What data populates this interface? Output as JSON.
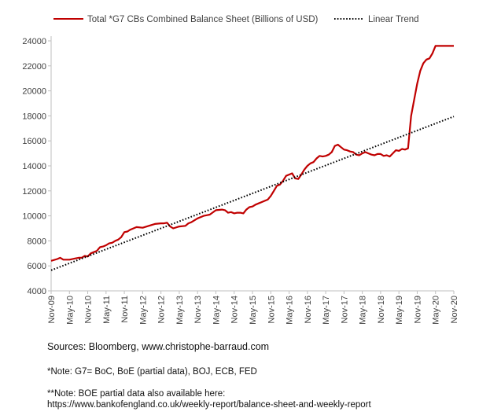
{
  "chart_data": {
    "type": "line",
    "title": "",
    "xlabel": "",
    "ylabel": "",
    "ylim": [
      4000,
      24000
    ],
    "yticks": [
      4000,
      6000,
      8000,
      10000,
      12000,
      14000,
      16000,
      18000,
      20000,
      22000,
      24000
    ],
    "ytick_labels": [
      "4000",
      "6000",
      "8000",
      "10000",
      "12000",
      "14000",
      "16000",
      "18000",
      "20000",
      "22000",
      "24000"
    ],
    "x_range_months": [
      0,
      132
    ],
    "xticks": [
      0,
      6,
      12,
      18,
      24,
      30,
      36,
      42,
      48,
      54,
      60,
      66,
      72,
      78,
      84,
      90,
      96,
      102,
      108,
      114,
      120,
      126,
      132
    ],
    "xtick_labels": [
      "Nov-09",
      "May-10",
      "Nov-10",
      "May-11",
      "Nov-11",
      "May-12",
      "Nov-12",
      "May-13",
      "Nov-13",
      "May-14",
      "Nov-14",
      "May-15",
      "Nov-15",
      "May-16",
      "Nov-16",
      "May-17",
      "Nov-17",
      "May-18",
      "Nov-18",
      "May-19",
      "Nov-19",
      "May-20",
      "Nov-20"
    ],
    "legend_position": "top",
    "grid": false,
    "series": [
      {
        "name": "Total *G7 CBs Combined Balance Sheet (Billions of USD)",
        "color": "#c00000",
        "style": "solid",
        "x": [
          0,
          2,
          3,
          4,
          6,
          8,
          9,
          10,
          11,
          12,
          13,
          14,
          15,
          16,
          17,
          18,
          19,
          20,
          21,
          22,
          23,
          24,
          25,
          26,
          27,
          28,
          30,
          32,
          34,
          36,
          37,
          38,
          39,
          40,
          42,
          44,
          45,
          46,
          48,
          50,
          51,
          52,
          54,
          56,
          57,
          58,
          59,
          60,
          61,
          62,
          63,
          64,
          65,
          66,
          67,
          68,
          69,
          70,
          71,
          72,
          73,
          74,
          75,
          76,
          77,
          78,
          79,
          80,
          81,
          82,
          83,
          84,
          85,
          86,
          87,
          88,
          89,
          90,
          91,
          92,
          93,
          94,
          95,
          96,
          97,
          98,
          99,
          100,
          101,
          102,
          103,
          104,
          105,
          106,
          107,
          108,
          109,
          110,
          111,
          112,
          113,
          114,
          115,
          116,
          117,
          118,
          119,
          120,
          121,
          122,
          123,
          124,
          125,
          126,
          127,
          128,
          129,
          130,
          131,
          132
        ],
        "values": [
          6400,
          6550,
          6650,
          6500,
          6500,
          6600,
          6650,
          6650,
          6800,
          6750,
          7000,
          7100,
          7200,
          7500,
          7550,
          7650,
          7800,
          7850,
          8000,
          8100,
          8300,
          8700,
          8750,
          8900,
          9000,
          9100,
          9050,
          9200,
          9350,
          9400,
          9400,
          9450,
          9150,
          9000,
          9150,
          9200,
          9400,
          9500,
          9800,
          10000,
          10050,
          10100,
          10450,
          10500,
          10450,
          10250,
          10300,
          10200,
          10250,
          10250,
          10200,
          10500,
          10700,
          10750,
          10900,
          11000,
          11100,
          11200,
          11300,
          11600,
          12000,
          12400,
          12500,
          12800,
          13200,
          13300,
          13400,
          13000,
          12950,
          13300,
          13700,
          14000,
          14200,
          14300,
          14600,
          14800,
          14750,
          14800,
          14900,
          15100,
          15600,
          15700,
          15500,
          15300,
          15250,
          15150,
          15100,
          14900,
          14850,
          15000,
          15100,
          15000,
          14900,
          14850,
          14950,
          14950,
          14800,
          14850,
          14750,
          15000,
          15250,
          15200,
          15350,
          15300,
          15400,
          18000,
          19300,
          20600,
          21600,
          22200,
          22500,
          22600,
          23000,
          23600,
          23600,
          23600,
          23600,
          23600,
          23600,
          23600
        ]
      },
      {
        "name": "Linear Trend",
        "color": "#000000",
        "style": "dotted",
        "x": [
          0,
          132
        ],
        "values": [
          5650,
          17950
        ]
      }
    ]
  },
  "footer": {
    "source": "Sources: Bloomberg, www.christophe-barraud.com",
    "note1": "*Note: G7= BoC, BoE (partial data), BOJ, ECB, FED",
    "note2": "**Note: BOE partial data also available here:",
    "note3": "https://www.bankofengland.co.uk/weekly-report/balance-sheet-and-weekly-report"
  }
}
